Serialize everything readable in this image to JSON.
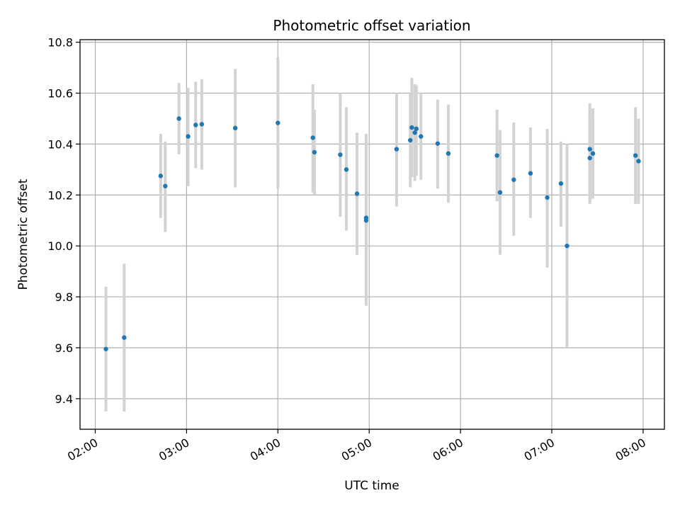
{
  "chart_data": {
    "type": "scatter",
    "title": "Photometric offset variation",
    "xlabel": "UTC time",
    "ylabel": "Photometric offset",
    "xlim": [
      "01:50",
      "08:14"
    ],
    "ylim": [
      9.28,
      10.81
    ],
    "grid": true,
    "x_ticks": [
      "02:00",
      "03:00",
      "04:00",
      "05:00",
      "06:00",
      "07:00",
      "08:00"
    ],
    "y_ticks": [
      "9.4",
      "9.6",
      "9.8",
      "10.0",
      "10.2",
      "10.4",
      "10.6",
      "10.8"
    ],
    "colors": {
      "point": "#1f77b4",
      "errorbar": "#d3d3d3",
      "grid": "#b0b0b0",
      "axes": "#000000"
    },
    "points": [
      {
        "x": "02:07",
        "y": 9.595,
        "lo": 9.35,
        "hi": 9.84
      },
      {
        "x": "02:19",
        "y": 9.64,
        "lo": 9.35,
        "hi": 9.93
      },
      {
        "x": "02:43",
        "y": 10.275,
        "lo": 10.11,
        "hi": 10.44
      },
      {
        "x": "02:46",
        "y": 10.235,
        "lo": 10.055,
        "hi": 10.41
      },
      {
        "x": "02:55",
        "y": 10.5,
        "lo": 10.36,
        "hi": 10.64
      },
      {
        "x": "03:01",
        "y": 10.43,
        "lo": 10.235,
        "hi": 10.62
      },
      {
        "x": "03:06",
        "y": 10.475,
        "lo": 10.305,
        "hi": 10.645
      },
      {
        "x": "03:10",
        "y": 10.478,
        "lo": 10.3,
        "hi": 10.655
      },
      {
        "x": "03:32",
        "y": 10.463,
        "lo": 10.23,
        "hi": 10.695
      },
      {
        "x": "04:00",
        "y": 10.483,
        "lo": 10.225,
        "hi": 10.74
      },
      {
        "x": "04:23",
        "y": 10.425,
        "lo": 10.21,
        "hi": 10.635
      },
      {
        "x": "04:24",
        "y": 10.368,
        "lo": 10.2,
        "hi": 10.535
      },
      {
        "x": "04:41",
        "y": 10.358,
        "lo": 10.115,
        "hi": 10.6
      },
      {
        "x": "04:45",
        "y": 10.3,
        "lo": 10.06,
        "hi": 10.545
      },
      {
        "x": "04:52",
        "y": 10.205,
        "lo": 9.965,
        "hi": 10.445
      },
      {
        "x": "04:58",
        "y": 10.1,
        "lo": 9.765,
        "hi": 10.435
      },
      {
        "x": "04:58",
        "y": 10.11,
        "lo": 9.78,
        "hi": 10.44
      },
      {
        "x": "05:18",
        "y": 10.38,
        "lo": 10.155,
        "hi": 10.6
      },
      {
        "x": "05:27",
        "y": 10.415,
        "lo": 10.23,
        "hi": 10.6
      },
      {
        "x": "05:28",
        "y": 10.465,
        "lo": 10.27,
        "hi": 10.66
      },
      {
        "x": "05:30",
        "y": 10.445,
        "lo": 10.255,
        "hi": 10.635
      },
      {
        "x": "05:31",
        "y": 10.46,
        "lo": 10.275,
        "hi": 10.63
      },
      {
        "x": "05:34",
        "y": 10.43,
        "lo": 10.26,
        "hi": 10.6
      },
      {
        "x": "05:45",
        "y": 10.402,
        "lo": 10.225,
        "hi": 10.575
      },
      {
        "x": "05:52",
        "y": 10.363,
        "lo": 10.17,
        "hi": 10.555
      },
      {
        "x": "06:24",
        "y": 10.355,
        "lo": 10.175,
        "hi": 10.535
      },
      {
        "x": "06:26",
        "y": 10.21,
        "lo": 9.965,
        "hi": 10.455
      },
      {
        "x": "06:35",
        "y": 10.26,
        "lo": 10.04,
        "hi": 10.485
      },
      {
        "x": "06:46",
        "y": 10.285,
        "lo": 10.11,
        "hi": 10.465
      },
      {
        "x": "06:57",
        "y": 10.19,
        "lo": 9.915,
        "hi": 10.46
      },
      {
        "x": "07:06",
        "y": 10.245,
        "lo": 10.075,
        "hi": 10.41
      },
      {
        "x": "07:10",
        "y": 10.0,
        "lo": 9.6,
        "hi": 10.4
      },
      {
        "x": "07:25",
        "y": 10.38,
        "lo": 10.165,
        "hi": 10.56
      },
      {
        "x": "07:25",
        "y": 10.345,
        "lo": 10.18,
        "hi": 10.51
      },
      {
        "x": "07:27",
        "y": 10.363,
        "lo": 10.185,
        "hi": 10.54
      },
      {
        "x": "07:55",
        "y": 10.355,
        "lo": 10.165,
        "hi": 10.545
      },
      {
        "x": "07:57",
        "y": 10.333,
        "lo": 10.165,
        "hi": 10.5
      }
    ]
  }
}
